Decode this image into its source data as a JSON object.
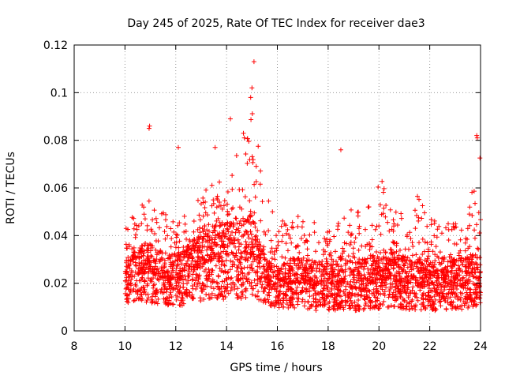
{
  "chart_data": {
    "type": "scatter",
    "title": "Day 245 of 2025, Rate Of TEC Index for receiver dae3",
    "xlabel": "GPS time / hours",
    "ylabel": "ROTI / TECUs",
    "xlim": [
      8,
      24
    ],
    "ylim": [
      0,
      0.12
    ],
    "xticks": [
      8,
      10,
      12,
      14,
      16,
      18,
      20,
      22,
      24
    ],
    "yticks": [
      0,
      0.02,
      0.04,
      0.06,
      0.08,
      0.1,
      0.12
    ],
    "xtick_labels": [
      "8",
      "10",
      "12",
      "14",
      "16",
      "18",
      "20",
      "22",
      "24"
    ],
    "ytick_labels": [
      "0",
      "0.02",
      "0.04",
      "0.06",
      "0.08",
      "0.1",
      "0.12"
    ],
    "grid": true,
    "marker": "+",
    "color": "#ff0000",
    "series": [
      {
        "name": "ROTI",
        "envelope": {
          "x": [
            10.0,
            10.5,
            11.0,
            11.5,
            12.0,
            12.5,
            13.0,
            13.5,
            14.0,
            14.5,
            15.0,
            15.5,
            16.0,
            16.5,
            17.0,
            17.5,
            18.0,
            18.5,
            19.0,
            19.5,
            20.0,
            20.5,
            21.0,
            21.5,
            22.0,
            22.5,
            23.0,
            23.5,
            24.0
          ],
          "upper": [
            0.044,
            0.052,
            0.055,
            0.05,
            0.047,
            0.05,
            0.06,
            0.062,
            0.066,
            0.08,
            0.098,
            0.06,
            0.045,
            0.048,
            0.05,
            0.045,
            0.043,
            0.055,
            0.052,
            0.05,
            0.066,
            0.058,
            0.048,
            0.06,
            0.048,
            0.046,
            0.045,
            0.048,
            0.08
          ],
          "typical": [
            0.02,
            0.024,
            0.025,
            0.022,
            0.022,
            0.023,
            0.028,
            0.03,
            0.029,
            0.03,
            0.032,
            0.022,
            0.018,
            0.02,
            0.02,
            0.019,
            0.019,
            0.02,
            0.019,
            0.02,
            0.021,
            0.022,
            0.02,
            0.02,
            0.019,
            0.019,
            0.02,
            0.02,
            0.022
          ],
          "lower": [
            0.008,
            0.008,
            0.006,
            0.006,
            0.006,
            0.005,
            0.006,
            0.006,
            0.006,
            0.006,
            0.007,
            0.006,
            0.006,
            0.005,
            0.005,
            0.004,
            0.004,
            0.004,
            0.004,
            0.004,
            0.004,
            0.004,
            0.004,
            0.004,
            0.004,
            0.004,
            0.004,
            0.004,
            0.006
          ]
        },
        "notable_points": [
          {
            "x": 15.08,
            "y": 0.113
          },
          {
            "x": 15.0,
            "y": 0.102
          },
          {
            "x": 14.95,
            "y": 0.098
          },
          {
            "x": 10.97,
            "y": 0.086
          },
          {
            "x": 10.95,
            "y": 0.085
          },
          {
            "x": 14.15,
            "y": 0.089
          },
          {
            "x": 23.85,
            "y": 0.082
          },
          {
            "x": 23.87,
            "y": 0.081
          },
          {
            "x": 18.5,
            "y": 0.076
          },
          {
            "x": 12.1,
            "y": 0.077
          },
          {
            "x": 13.55,
            "y": 0.077
          },
          {
            "x": 14.7,
            "y": 0.081
          }
        ]
      }
    ]
  }
}
